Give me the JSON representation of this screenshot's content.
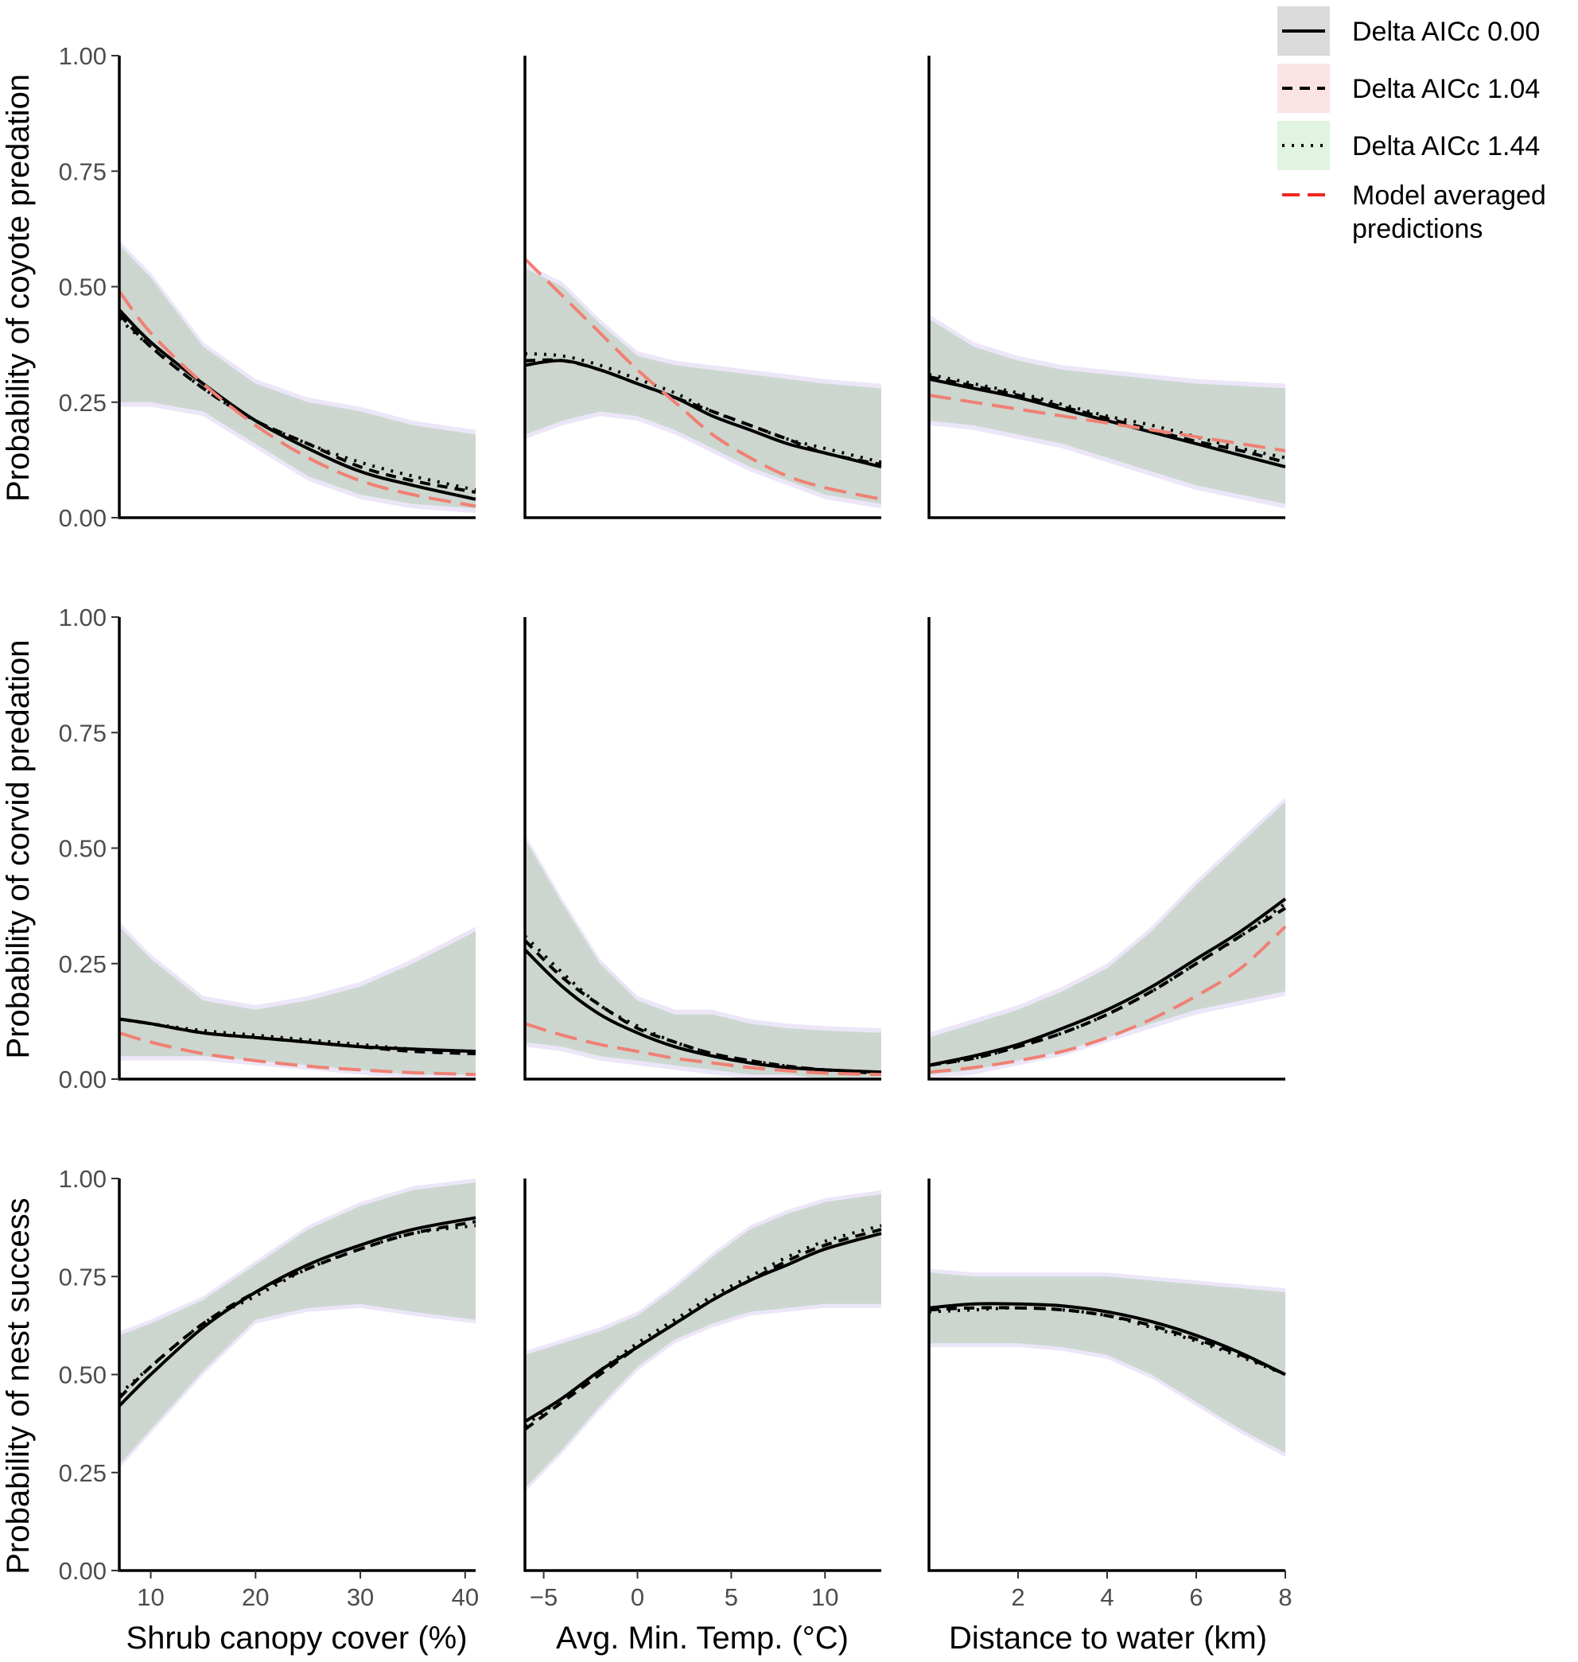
{
  "chart_data": {
    "type": "line",
    "title": "",
    "colors": {
      "ribbon_0": "#cfd7cf",
      "ribbon_104": "#f7d3d3",
      "ribbon_144": "#d2efd2",
      "ribbon_purple": "#dcd2f2",
      "ribbon_blue": "#d2e3fa",
      "model_averaged": "#f08074",
      "line": "#000000"
    },
    "legend": [
      {
        "label": "Delta AICc 0.00",
        "style": "solid",
        "ribbon": "#cfd7cf"
      },
      {
        "label": "Delta AICc 1.04",
        "style": "dashed",
        "ribbon": "#f7d3d3"
      },
      {
        "label": "Delta AICc 1.44",
        "style": "dotted",
        "ribbon": "#d2efd2"
      },
      {
        "label": "Model averaged\npredictions",
        "label_line1": "Model averaged",
        "label_line2": "predictions",
        "style": "longdash-red"
      }
    ],
    "ylabels": [
      "Probability of coyote predation",
      "Probability of corvid predation",
      "Probability of nest success"
    ],
    "xlabels": [
      "Shrub canopy cover (%)",
      "Avg. Min. Temp. (°C)",
      "Distance to water (km)"
    ],
    "ylim": [
      0,
      1
    ],
    "yticks": [
      0,
      0.25,
      0.5,
      0.75,
      1.0
    ],
    "ytick_labels": [
      "0.00",
      "0.25",
      "0.50",
      "0.75",
      "1.00"
    ],
    "xaxes": [
      {
        "xlim": [
          7,
          41
        ],
        "ticks": [
          10,
          20,
          30,
          40
        ],
        "tick_labels": [
          "10",
          "20",
          "30",
          "40"
        ]
      },
      {
        "xlim": [
          -6,
          13
        ],
        "ticks": [
          -5,
          0,
          5,
          10
        ],
        "tick_labels": [
          "−5",
          "0",
          "5",
          "10"
        ]
      },
      {
        "xlim": [
          0,
          8
        ],
        "ticks": [
          2,
          4,
          6,
          8
        ],
        "tick_labels": [
          "2",
          "4",
          "6",
          "8"
        ]
      }
    ],
    "panels": [
      {
        "row": 0,
        "col": 0,
        "x": [
          7,
          10,
          15,
          20,
          25,
          30,
          35,
          41
        ],
        "series": [
          {
            "name": "Delta AICc 0.00",
            "values": [
              0.45,
              0.38,
              0.29,
              0.21,
              0.15,
              0.1,
              0.07,
              0.04
            ]
          },
          {
            "name": "Delta AICc 1.04",
            "values": [
              0.44,
              0.37,
              0.28,
              0.21,
              0.16,
              0.11,
              0.08,
              0.055
            ]
          },
          {
            "name": "Delta AICc 1.44",
            "values": [
              0.43,
              0.37,
              0.28,
              0.21,
              0.16,
              0.12,
              0.09,
              0.06
            ]
          },
          {
            "name": "Model averaged predictions",
            "values": [
              0.49,
              0.4,
              0.29,
              0.2,
              0.13,
              0.08,
              0.05,
              0.025
            ]
          }
        ],
        "ribbon_lower": [
          0.25,
          0.25,
          0.23,
          0.16,
          0.09,
          0.05,
          0.03,
          0.02
        ],
        "ribbon_upper": [
          0.59,
          0.52,
          0.37,
          0.29,
          0.25,
          0.23,
          0.2,
          0.18
        ]
      },
      {
        "row": 0,
        "col": 1,
        "x": [
          -6,
          -4,
          -2,
          0,
          2,
          4,
          6,
          8,
          10,
          13
        ],
        "series": [
          {
            "name": "Delta AICc 0.00",
            "values": [
              0.33,
              0.34,
              0.32,
              0.29,
              0.26,
              0.22,
              0.19,
              0.16,
              0.14,
              0.11
            ]
          },
          {
            "name": "Delta AICc 1.04",
            "values": [
              0.34,
              0.34,
              0.32,
              0.29,
              0.26,
              0.23,
              0.2,
              0.17,
              0.14,
              0.115
            ]
          },
          {
            "name": "Delta AICc 1.44",
            "values": [
              0.355,
              0.35,
              0.33,
              0.3,
              0.27,
              0.23,
              0.2,
              0.17,
              0.15,
              0.12
            ]
          },
          {
            "name": "Model averaged predictions",
            "values": [
              0.56,
              0.48,
              0.4,
              0.32,
              0.25,
              0.18,
              0.13,
              0.09,
              0.065,
              0.04
            ]
          }
        ],
        "ribbon_lower": [
          0.18,
          0.21,
          0.23,
          0.22,
          0.19,
          0.15,
          0.11,
          0.08,
          0.05,
          0.03
        ],
        "ribbon_upper": [
          0.54,
          0.5,
          0.42,
          0.35,
          0.33,
          0.32,
          0.31,
          0.3,
          0.29,
          0.28
        ]
      },
      {
        "row": 0,
        "col": 2,
        "x": [
          0,
          1,
          2,
          3,
          4,
          5,
          6,
          7,
          8
        ],
        "series": [
          {
            "name": "Delta AICc 0.00",
            "values": [
              0.3,
              0.28,
              0.26,
              0.235,
              0.21,
              0.185,
              0.16,
              0.135,
              0.11
            ]
          },
          {
            "name": "Delta AICc 1.04",
            "values": [
              0.305,
              0.285,
              0.265,
              0.24,
              0.215,
              0.19,
              0.165,
              0.145,
              0.12
            ]
          },
          {
            "name": "Delta AICc 1.44",
            "values": [
              0.31,
              0.29,
              0.27,
              0.245,
              0.22,
              0.2,
              0.175,
              0.15,
              0.13
            ]
          },
          {
            "name": "Model averaged predictions",
            "values": [
              0.265,
              0.25,
              0.235,
              0.22,
              0.205,
              0.19,
              0.175,
              0.16,
              0.145
            ]
          }
        ],
        "ribbon_lower": [
          0.21,
          0.2,
          0.18,
          0.16,
          0.13,
          0.1,
          0.07,
          0.05,
          0.03
        ],
        "ribbon_upper": [
          0.43,
          0.37,
          0.34,
          0.32,
          0.31,
          0.3,
          0.29,
          0.285,
          0.28
        ]
      },
      {
        "row": 1,
        "col": 0,
        "x": [
          7,
          10,
          15,
          20,
          25,
          30,
          35,
          41
        ],
        "series": [
          {
            "name": "Delta AICc 0.00",
            "values": [
              0.13,
              0.12,
              0.1,
              0.09,
              0.08,
              0.07,
              0.065,
              0.06
            ]
          },
          {
            "name": "Delta AICc 1.04",
            "values": [
              0.13,
              0.12,
              0.1,
              0.09,
              0.08,
              0.07,
              0.06,
              0.055
            ]
          },
          {
            "name": "Delta AICc 1.44",
            "values": [
              0.13,
              0.12,
              0.105,
              0.095,
              0.085,
              0.075,
              0.065,
              0.06
            ]
          },
          {
            "name": "Model averaged predictions",
            "values": [
              0.1,
              0.08,
              0.055,
              0.04,
              0.028,
              0.02,
              0.014,
              0.01
            ]
          }
        ],
        "ribbon_lower": [
          0.05,
          0.05,
          0.05,
          0.04,
          0.03,
          0.02,
          0.01,
          0.01
        ],
        "ribbon_upper": [
          0.33,
          0.26,
          0.17,
          0.15,
          0.17,
          0.2,
          0.25,
          0.32
        ]
      },
      {
        "row": 1,
        "col": 1,
        "x": [
          -6,
          -4,
          -2,
          0,
          2,
          4,
          6,
          8,
          10,
          13
        ],
        "series": [
          {
            "name": "Delta AICc 0.00",
            "values": [
              0.28,
              0.2,
              0.14,
              0.1,
              0.07,
              0.05,
              0.035,
              0.025,
              0.02,
              0.015
            ]
          },
          {
            "name": "Delta AICc 1.04",
            "values": [
              0.3,
              0.22,
              0.16,
              0.11,
              0.08,
              0.055,
              0.04,
              0.028,
              0.02,
              0.012
            ]
          },
          {
            "name": "Delta AICc 1.44",
            "values": [
              0.31,
              0.23,
              0.16,
              0.115,
              0.08,
              0.055,
              0.04,
              0.028,
              0.02,
              0.015
            ]
          },
          {
            "name": "Model averaged predictions",
            "values": [
              0.12,
              0.095,
              0.075,
              0.06,
              0.045,
              0.035,
              0.025,
              0.018,
              0.013,
              0.01
            ]
          }
        ],
        "ribbon_lower": [
          0.08,
          0.07,
          0.05,
          0.04,
          0.03,
          0.02,
          0.01,
          0.01,
          0.0,
          0.0
        ],
        "ribbon_upper": [
          0.52,
          0.38,
          0.25,
          0.17,
          0.14,
          0.14,
          0.12,
          0.11,
          0.105,
          0.1
        ]
      },
      {
        "row": 1,
        "col": 2,
        "x": [
          0,
          1,
          2,
          3,
          4,
          5,
          6,
          7,
          8
        ],
        "series": [
          {
            "name": "Delta AICc 0.00",
            "values": [
              0.03,
              0.05,
              0.075,
              0.11,
              0.15,
              0.2,
              0.26,
              0.32,
              0.39
            ]
          },
          {
            "name": "Delta AICc 1.04",
            "values": [
              0.03,
              0.045,
              0.07,
              0.1,
              0.14,
              0.19,
              0.25,
              0.31,
              0.37
            ]
          },
          {
            "name": "Delta AICc 1.44",
            "values": [
              0.03,
              0.045,
              0.07,
              0.1,
              0.14,
              0.19,
              0.25,
              0.31,
              0.38
            ]
          },
          {
            "name": "Model averaged predictions",
            "values": [
              0.015,
              0.025,
              0.04,
              0.06,
              0.09,
              0.13,
              0.18,
              0.24,
              0.33
            ]
          }
        ],
        "ribbon_lower": [
          0.01,
          0.02,
          0.04,
          0.06,
          0.09,
          0.12,
          0.15,
          0.17,
          0.19
        ],
        "ribbon_upper": [
          0.09,
          0.12,
          0.15,
          0.19,
          0.24,
          0.32,
          0.42,
          0.51,
          0.6
        ]
      },
      {
        "row": 2,
        "col": 0,
        "x": [
          7,
          10,
          15,
          20,
          25,
          30,
          35,
          41
        ],
        "series": [
          {
            "name": "Delta AICc 0.00",
            "values": [
              0.42,
              0.5,
              0.62,
              0.71,
              0.78,
              0.83,
              0.87,
              0.9
            ]
          },
          {
            "name": "Delta AICc 1.04",
            "values": [
              0.44,
              0.52,
              0.63,
              0.71,
              0.77,
              0.82,
              0.86,
              0.89
            ]
          },
          {
            "name": "Delta AICc 1.44",
            "values": [
              0.45,
              0.52,
              0.63,
              0.7,
              0.77,
              0.82,
              0.86,
              0.88
            ]
          }
        ],
        "ribbon_lower": [
          0.27,
          0.36,
          0.51,
          0.64,
          0.67,
          0.68,
          0.66,
          0.64
        ],
        "ribbon_upper": [
          0.6,
          0.63,
          0.69,
          0.78,
          0.87,
          0.93,
          0.97,
          0.99
        ]
      },
      {
        "row": 2,
        "col": 1,
        "x": [
          -6,
          -4,
          -2,
          0,
          2,
          4,
          6,
          8,
          10,
          13
        ],
        "series": [
          {
            "name": "Delta AICc 0.00",
            "values": [
              0.38,
              0.44,
              0.51,
              0.57,
              0.63,
              0.69,
              0.74,
              0.78,
              0.82,
              0.86
            ]
          },
          {
            "name": "Delta AICc 1.04",
            "values": [
              0.36,
              0.43,
              0.5,
              0.57,
              0.63,
              0.69,
              0.74,
              0.79,
              0.83,
              0.87
            ]
          },
          {
            "name": "Delta AICc 1.44",
            "values": [
              0.37,
              0.44,
              0.51,
              0.58,
              0.64,
              0.7,
              0.75,
              0.8,
              0.84,
              0.88
            ]
          }
        ],
        "ribbon_lower": [
          0.21,
          0.31,
          0.42,
          0.52,
          0.59,
          0.63,
          0.66,
          0.67,
          0.68,
          0.68
        ],
        "ribbon_upper": [
          0.55,
          0.58,
          0.61,
          0.65,
          0.72,
          0.8,
          0.87,
          0.91,
          0.94,
          0.96
        ]
      },
      {
        "row": 2,
        "col": 2,
        "x": [
          0,
          1,
          2,
          3,
          4,
          5,
          6,
          7,
          8
        ],
        "series": [
          {
            "name": "Delta AICc 0.00",
            "values": [
              0.67,
              0.68,
              0.68,
              0.675,
              0.66,
              0.635,
              0.6,
              0.555,
              0.5
            ]
          },
          {
            "name": "Delta AICc 1.04",
            "values": [
              0.665,
              0.67,
              0.67,
              0.665,
              0.65,
              0.625,
              0.59,
              0.55,
              0.5
            ]
          },
          {
            "name": "Delta AICc 1.44",
            "values": [
              0.66,
              0.665,
              0.67,
              0.665,
              0.65,
              0.62,
              0.585,
              0.545,
              0.5
            ]
          }
        ],
        "ribbon_lower": [
          0.58,
          0.58,
          0.58,
          0.57,
          0.55,
          0.5,
          0.43,
          0.36,
          0.3
        ],
        "ribbon_upper": [
          0.76,
          0.75,
          0.75,
          0.75,
          0.75,
          0.74,
          0.73,
          0.72,
          0.71
        ]
      }
    ]
  }
}
